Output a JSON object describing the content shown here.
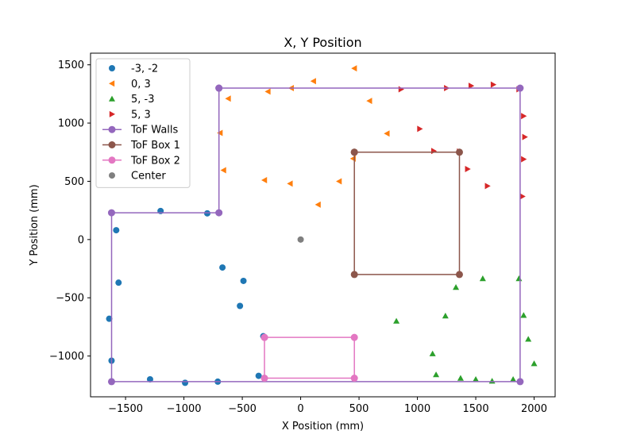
{
  "chart_data": {
    "type": "scatter",
    "title": "X, Y Position",
    "xlabel": "X Position (mm)",
    "ylabel": "Y Position (mm)",
    "xlim": [
      -1800,
      2180
    ],
    "ylim": [
      -1350,
      1600
    ],
    "xticks": [
      -1500,
      -1000,
      -500,
      0,
      500,
      1000,
      1500,
      2000
    ],
    "xtick_labels": [
      "−1500",
      "−1000",
      "−500",
      "0",
      "500",
      "1000",
      "1500",
      "2000"
    ],
    "yticks": [
      -1000,
      -500,
      0,
      500,
      1000,
      1500
    ],
    "ytick_labels": [
      "−1000",
      "−500",
      "0",
      "500",
      "1000",
      "1500"
    ],
    "grid": false,
    "legend_position": "top-left",
    "series": [
      {
        "name": "-3, -2",
        "marker": "circle",
        "color": "#1f77b4",
        "points": [
          [
            -1200,
            245
          ],
          [
            -800,
            225
          ],
          [
            -1580,
            80
          ],
          [
            -1560,
            -370
          ],
          [
            -1640,
            -680
          ],
          [
            -1620,
            -1040
          ],
          [
            -1290,
            -1200
          ],
          [
            -990,
            -1230
          ],
          [
            -710,
            -1220
          ],
          [
            -670,
            -240
          ],
          [
            -490,
            -355
          ],
          [
            -520,
            -570
          ],
          [
            -320,
            -830
          ],
          [
            -360,
            -1170
          ]
        ]
      },
      {
        "name": "0, 3",
        "marker": "triangle-left",
        "color": "#ff7f0e",
        "points": [
          [
            -620,
            1210
          ],
          [
            -280,
            1270
          ],
          [
            -80,
            1300
          ],
          [
            110,
            1360
          ],
          [
            460,
            1470
          ],
          [
            590,
            1190
          ],
          [
            -690,
            915
          ],
          [
            -660,
            595
          ],
          [
            -310,
            510
          ],
          [
            -90,
            480
          ],
          [
            330,
            500
          ],
          [
            150,
            300
          ],
          [
            450,
            695
          ],
          [
            740,
            910
          ]
        ]
      },
      {
        "name": "5, -3",
        "marker": "triangle-up",
        "color": "#2ca02c",
        "points": [
          [
            1330,
            -410
          ],
          [
            1560,
            -335
          ],
          [
            1870,
            -335
          ],
          [
            1910,
            -650
          ],
          [
            1950,
            -855
          ],
          [
            2000,
            -1065
          ],
          [
            820,
            -700
          ],
          [
            1240,
            -655
          ],
          [
            1130,
            -980
          ],
          [
            1160,
            -1160
          ],
          [
            1370,
            -1190
          ],
          [
            1500,
            -1200
          ],
          [
            1640,
            -1215
          ],
          [
            1820,
            -1200
          ]
        ]
      },
      {
        "name": "5, 3",
        "marker": "triangle-right",
        "color": "#d62728",
        "points": [
          [
            860,
            1290
          ],
          [
            1250,
            1300
          ],
          [
            1460,
            1320
          ],
          [
            1650,
            1330
          ],
          [
            1870,
            1290
          ],
          [
            1910,
            1060
          ],
          [
            1920,
            880
          ],
          [
            1910,
            690
          ],
          [
            1900,
            370
          ],
          [
            1600,
            460
          ],
          [
            1430,
            605
          ],
          [
            1360,
            755
          ],
          [
            1140,
            760
          ],
          [
            1020,
            950
          ]
        ]
      },
      {
        "name": "ToF Walls",
        "marker": "line-circle",
        "color": "#9467bd",
        "points": [
          [
            -700,
            1300
          ],
          [
            1880,
            1300
          ],
          [
            1880,
            -1220
          ],
          [
            -1620,
            -1220
          ],
          [
            -1620,
            230
          ],
          [
            -700,
            230
          ],
          [
            -700,
            1300
          ]
        ]
      },
      {
        "name": "ToF Box 1",
        "marker": "line-circle",
        "color": "#8c564b",
        "points": [
          [
            460,
            750
          ],
          [
            1360,
            750
          ],
          [
            1360,
            -300
          ],
          [
            460,
            -300
          ],
          [
            460,
            750
          ]
        ]
      },
      {
        "name": "ToF Box 2",
        "marker": "line-circle",
        "color": "#e377c2",
        "points": [
          [
            -310,
            -840
          ],
          [
            460,
            -840
          ],
          [
            460,
            -1190
          ],
          [
            -310,
            -1190
          ],
          [
            -310,
            -840
          ]
        ]
      },
      {
        "name": "Center",
        "marker": "circle",
        "color": "#7f7f7f",
        "points": [
          [
            0,
            0
          ]
        ]
      }
    ]
  }
}
